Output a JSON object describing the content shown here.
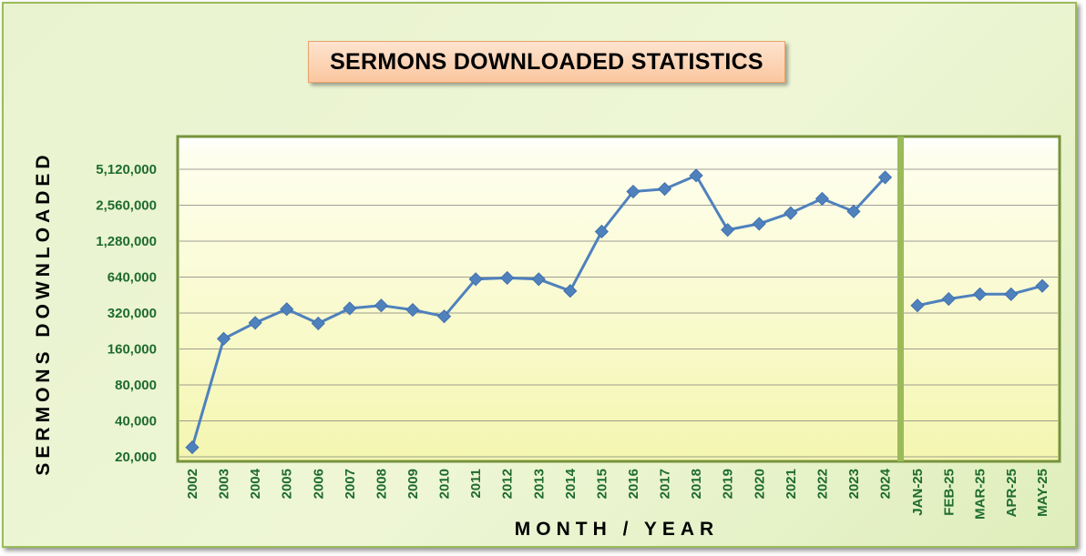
{
  "chart_data": {
    "type": "line",
    "title": "SERMONS DOWNLOADED STATISTICS",
    "xlabel": "MONTH / YEAR",
    "ylabel": "SERMONS DOWNLOADED",
    "yscale": "log2",
    "ylim": [
      20000,
      7200000
    ],
    "yticks": [
      20000,
      40000,
      80000,
      160000,
      320000,
      640000,
      1280000,
      2560000,
      5120000
    ],
    "ytick_labels": [
      "20,000",
      "40,000",
      "80,000",
      "160,000",
      "320,000",
      "640,000",
      "1,280,000",
      "2,560,000",
      "5,120,000"
    ],
    "grid": true,
    "segments": [
      {
        "categories": [
          "2002",
          "2003",
          "2004",
          "2005",
          "2006",
          "2007",
          "2008",
          "2009",
          "2010",
          "2011",
          "2012",
          "2013",
          "2014",
          "2015",
          "2016",
          "2017",
          "2018",
          "2019",
          "2020",
          "2021",
          "2022",
          "2023",
          "2024"
        ],
        "values": [
          24000,
          195000,
          265000,
          345000,
          262000,
          350000,
          370000,
          340000,
          300000,
          615000,
          630000,
          615000,
          490000,
          1540000,
          3330000,
          3500000,
          4540000,
          1590000,
          1790000,
          2200000,
          2900000,
          2270000,
          4380000
        ]
      },
      {
        "categories": [
          "JAN-25",
          "FEB-25",
          "MAR-25",
          "APR-25",
          "MAY-25"
        ],
        "values": [
          370000,
          420000,
          460000,
          460000,
          540000
        ]
      }
    ],
    "colors": {
      "line": "#4f81bd",
      "marker": "#4f81bd",
      "tick_text": "#1e6b2e",
      "plot_border": "#77933c",
      "divider": "#9bbb59",
      "title_fill": "#fbd4b4",
      "frame_fill": "#ebf1de"
    }
  }
}
